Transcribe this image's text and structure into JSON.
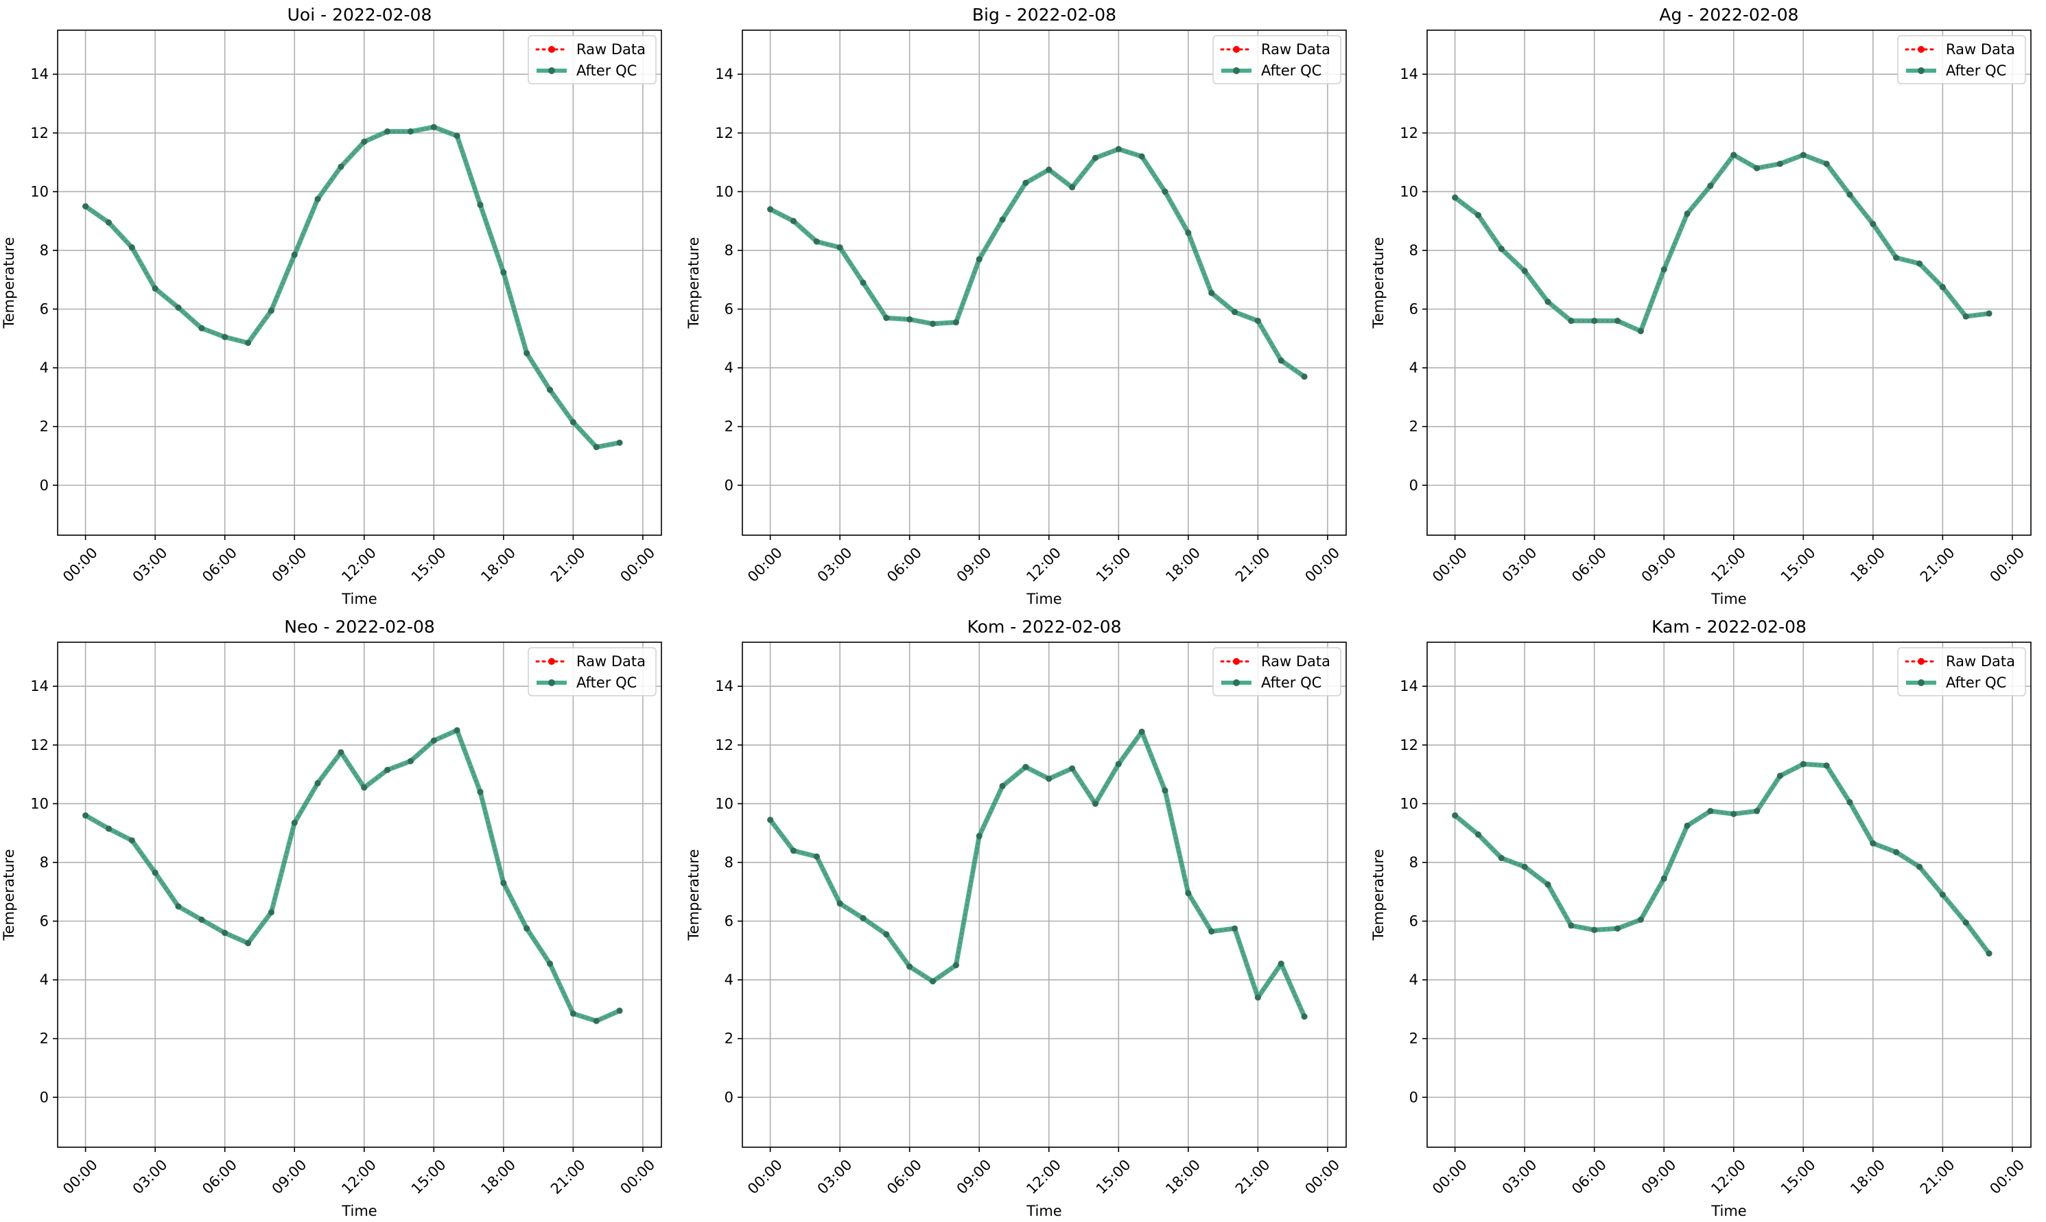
{
  "figure": {
    "legend_entries": [
      {
        "label": "Raw Data",
        "color": "#ff0000",
        "style": "dotted line with circle markers"
      },
      {
        "label": "After QC",
        "color": "#2a9d7a",
        "style": "solid line with circle markers"
      }
    ]
  },
  "chart_data": [
    {
      "type": "line",
      "title": "Uoi - 2022-02-08",
      "xlabel": "Time",
      "ylabel": "Temperature",
      "xlim_hours": [
        -1.2,
        24.8
      ],
      "ylim": [
        -1.7,
        15.5
      ],
      "x_tick_labels": [
        "00:00",
        "03:00",
        "06:00",
        "09:00",
        "12:00",
        "15:00",
        "18:00",
        "21:00",
        "00:00"
      ],
      "y_ticks": [
        0,
        2,
        4,
        6,
        8,
        10,
        12,
        14
      ],
      "grid": true,
      "legend_position": "top-right",
      "x_hours": [
        0,
        1,
        2,
        3,
        4,
        5,
        6,
        7,
        8,
        9,
        10,
        11,
        12,
        13,
        14,
        15,
        16,
        17,
        18,
        19,
        20,
        21,
        22,
        23
      ],
      "series": [
        {
          "name": "Raw Data",
          "values": [
            9.5,
            8.95,
            8.1,
            6.7,
            6.05,
            5.35,
            5.05,
            4.85,
            5.95,
            7.85,
            9.75,
            10.85,
            11.7,
            12.05,
            12.05,
            12.2,
            11.9,
            9.55,
            7.25,
            4.5,
            3.25,
            2.15,
            1.3,
            1.45
          ]
        },
        {
          "name": "After QC",
          "values": [
            9.5,
            8.95,
            8.1,
            6.7,
            6.05,
            5.35,
            5.05,
            4.85,
            5.95,
            7.85,
            9.75,
            10.85,
            11.7,
            12.05,
            12.05,
            12.2,
            11.9,
            9.55,
            7.25,
            4.5,
            3.25,
            2.15,
            1.3,
            1.45
          ]
        }
      ]
    },
    {
      "type": "line",
      "title": "Big - 2022-02-08",
      "xlabel": "Time",
      "ylabel": "Temperature",
      "xlim_hours": [
        -1.2,
        24.8
      ],
      "ylim": [
        -1.7,
        15.5
      ],
      "x_tick_labels": [
        "00:00",
        "03:00",
        "06:00",
        "09:00",
        "12:00",
        "15:00",
        "18:00",
        "21:00",
        "00:00"
      ],
      "y_ticks": [
        0,
        2,
        4,
        6,
        8,
        10,
        12,
        14
      ],
      "grid": true,
      "legend_position": "top-right",
      "x_hours": [
        0,
        1,
        2,
        3,
        4,
        5,
        6,
        7,
        8,
        9,
        10,
        11,
        12,
        13,
        14,
        15,
        16,
        17,
        18,
        19,
        20,
        21,
        22,
        23
      ],
      "series": [
        {
          "name": "Raw Data",
          "values": [
            9.4,
            9.0,
            8.3,
            8.1,
            6.9,
            5.7,
            5.65,
            5.5,
            5.55,
            7.7,
            9.05,
            10.3,
            10.75,
            10.15,
            11.15,
            11.45,
            11.2,
            10.0,
            8.6,
            6.55,
            5.9,
            5.6,
            4.25,
            3.7
          ]
        },
        {
          "name": "After QC",
          "values": [
            9.4,
            9.0,
            8.3,
            8.1,
            6.9,
            5.7,
            5.65,
            5.5,
            5.55,
            7.7,
            9.05,
            10.3,
            10.75,
            10.15,
            11.15,
            11.45,
            11.2,
            10.0,
            8.6,
            6.55,
            5.9,
            5.6,
            4.25,
            3.7
          ]
        }
      ]
    },
    {
      "type": "line",
      "title": "Ag - 2022-02-08",
      "xlabel": "Time",
      "ylabel": "Temperature",
      "xlim_hours": [
        -1.2,
        24.8
      ],
      "ylim": [
        -1.7,
        15.5
      ],
      "x_tick_labels": [
        "00:00",
        "03:00",
        "06:00",
        "09:00",
        "12:00",
        "15:00",
        "18:00",
        "21:00",
        "00:00"
      ],
      "y_ticks": [
        0,
        2,
        4,
        6,
        8,
        10,
        12,
        14
      ],
      "grid": true,
      "legend_position": "top-right",
      "x_hours": [
        0,
        1,
        2,
        3,
        4,
        5,
        6,
        7,
        8,
        9,
        10,
        11,
        12,
        13,
        14,
        15,
        16,
        17,
        18,
        19,
        20,
        21,
        22,
        23
      ],
      "series": [
        {
          "name": "Raw Data",
          "values": [
            9.8,
            9.2,
            8.05,
            7.3,
            6.25,
            5.6,
            5.6,
            5.6,
            5.25,
            7.35,
            9.25,
            10.2,
            11.25,
            10.8,
            10.95,
            11.25,
            10.95,
            9.9,
            8.9,
            7.75,
            7.55,
            6.75,
            5.75,
            5.85
          ]
        },
        {
          "name": "After QC",
          "values": [
            9.8,
            9.2,
            8.05,
            7.3,
            6.25,
            5.6,
            5.6,
            5.6,
            5.25,
            7.35,
            9.25,
            10.2,
            11.25,
            10.8,
            10.95,
            11.25,
            10.95,
            9.9,
            8.9,
            7.75,
            7.55,
            6.75,
            5.75,
            5.85
          ]
        }
      ]
    },
    {
      "type": "line",
      "title": "Neo - 2022-02-08",
      "xlabel": "Time",
      "ylabel": "Temperature",
      "xlim_hours": [
        -1.2,
        24.8
      ],
      "ylim": [
        -1.7,
        15.5
      ],
      "x_tick_labels": [
        "00:00",
        "03:00",
        "06:00",
        "09:00",
        "12:00",
        "15:00",
        "18:00",
        "21:00",
        "00:00"
      ],
      "y_ticks": [
        0,
        2,
        4,
        6,
        8,
        10,
        12,
        14
      ],
      "grid": true,
      "legend_position": "top-right",
      "x_hours": [
        0,
        1,
        2,
        3,
        4,
        5,
        6,
        7,
        8,
        9,
        10,
        11,
        12,
        13,
        14,
        15,
        16,
        17,
        18,
        19,
        20,
        21,
        22,
        23
      ],
      "series": [
        {
          "name": "Raw Data",
          "values": [
            9.6,
            9.15,
            8.75,
            7.65,
            6.5,
            6.05,
            5.6,
            5.25,
            6.3,
            9.35,
            10.7,
            11.75,
            10.55,
            11.15,
            11.45,
            12.15,
            12.5,
            10.4,
            7.3,
            5.75,
            4.55,
            2.85,
            2.6,
            2.95
          ]
        },
        {
          "name": "After QC",
          "values": [
            9.6,
            9.15,
            8.75,
            7.65,
            6.5,
            6.05,
            5.6,
            5.25,
            6.3,
            9.35,
            10.7,
            11.75,
            10.55,
            11.15,
            11.45,
            12.15,
            12.5,
            10.4,
            7.3,
            5.75,
            4.55,
            2.85,
            2.6,
            2.95
          ]
        }
      ]
    },
    {
      "type": "line",
      "title": "Kom - 2022-02-08",
      "xlabel": "Time",
      "ylabel": "Temperature",
      "xlim_hours": [
        -1.2,
        24.8
      ],
      "ylim": [
        -1.7,
        15.5
      ],
      "x_tick_labels": [
        "00:00",
        "03:00",
        "06:00",
        "09:00",
        "12:00",
        "15:00",
        "18:00",
        "21:00",
        "00:00"
      ],
      "y_ticks": [
        0,
        2,
        4,
        6,
        8,
        10,
        12,
        14
      ],
      "grid": true,
      "legend_position": "top-right",
      "x_hours": [
        0,
        1,
        2,
        3,
        4,
        5,
        6,
        7,
        8,
        9,
        10,
        11,
        12,
        13,
        14,
        15,
        16,
        17,
        18,
        19,
        20,
        21,
        22,
        23
      ],
      "series": [
        {
          "name": "Raw Data",
          "values": [
            9.45,
            8.4,
            8.2,
            6.6,
            6.1,
            5.55,
            4.45,
            3.95,
            4.5,
            8.9,
            10.6,
            11.25,
            10.85,
            11.2,
            10.0,
            11.35,
            12.45,
            10.45,
            6.95,
            5.65,
            5.75,
            3.4,
            4.55,
            2.75
          ]
        },
        {
          "name": "After QC",
          "values": [
            9.45,
            8.4,
            8.2,
            6.6,
            6.1,
            5.55,
            4.45,
            3.95,
            4.5,
            8.9,
            10.6,
            11.25,
            10.85,
            11.2,
            10.0,
            11.35,
            12.45,
            10.45,
            6.95,
            5.65,
            5.75,
            3.4,
            4.55,
            2.75
          ]
        }
      ]
    },
    {
      "type": "line",
      "title": "Kam - 2022-02-08",
      "xlabel": "Time",
      "ylabel": "Temperature",
      "xlim_hours": [
        -1.2,
        24.8
      ],
      "ylim": [
        -1.7,
        15.5
      ],
      "x_tick_labels": [
        "00:00",
        "03:00",
        "06:00",
        "09:00",
        "12:00",
        "15:00",
        "18:00",
        "21:00",
        "00:00"
      ],
      "y_ticks": [
        0,
        2,
        4,
        6,
        8,
        10,
        12,
        14
      ],
      "grid": true,
      "legend_position": "top-right",
      "x_hours": [
        0,
        1,
        2,
        3,
        4,
        5,
        6,
        7,
        8,
        9,
        10,
        11,
        12,
        13,
        14,
        15,
        16,
        17,
        18,
        19,
        20,
        21,
        22,
        23
      ],
      "series": [
        {
          "name": "Raw Data",
          "values": [
            9.6,
            8.95,
            8.15,
            7.85,
            7.25,
            5.85,
            5.7,
            5.75,
            6.05,
            7.45,
            9.25,
            9.75,
            9.65,
            9.75,
            10.95,
            11.35,
            11.3,
            10.05,
            8.65,
            8.35,
            7.85,
            6.9,
            5.95,
            4.9
          ]
        },
        {
          "name": "After QC",
          "values": [
            9.6,
            8.95,
            8.15,
            7.85,
            7.25,
            5.85,
            5.7,
            5.75,
            6.05,
            7.45,
            9.25,
            9.75,
            9.65,
            9.75,
            10.95,
            11.35,
            11.3,
            10.05,
            8.65,
            8.35,
            7.85,
            6.9,
            5.95,
            4.9
          ]
        }
      ]
    }
  ]
}
